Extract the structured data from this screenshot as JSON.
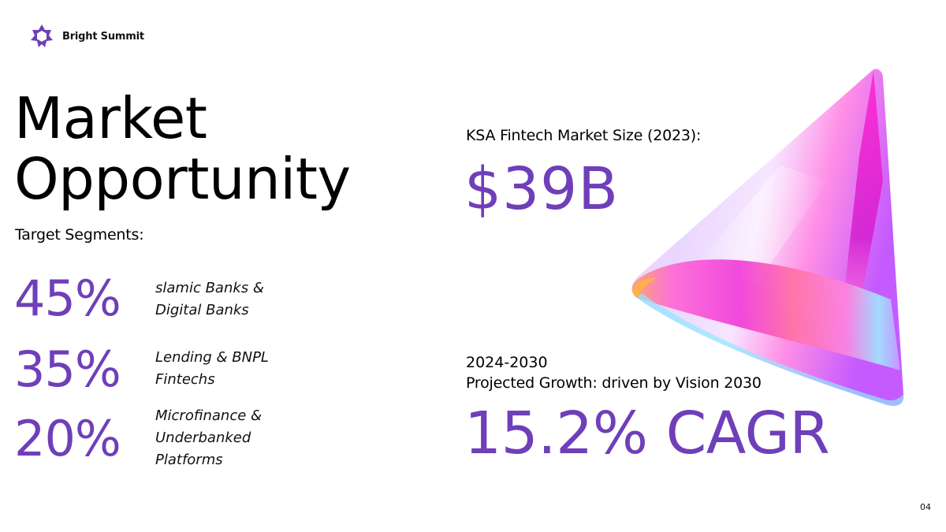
{
  "brand": {
    "name": "Bright Summit",
    "logo_icon": "star-badge-icon",
    "logo_color": "#6f3fb9"
  },
  "title": {
    "line1": "Market",
    "line2": "Opportunity"
  },
  "segments": {
    "heading": "Target Segments:",
    "items": [
      {
        "percent": "45%",
        "label_line1": "slamic Banks &",
        "label_line2": "Digital Banks",
        "label_line3": ""
      },
      {
        "percent": "35%",
        "label_line1": "Lending & BNPL",
        "label_line2": "Fintechs",
        "label_line3": ""
      },
      {
        "percent": "20%",
        "label_line1": "Microfinance &",
        "label_line2": "Underbanked",
        "label_line3": "Platforms"
      }
    ]
  },
  "market": {
    "label": "KSA Fintech Market Size (2023):",
    "value": "$39B"
  },
  "growth": {
    "period": "2024-2030",
    "label": "Projected Growth: driven by Vision 2030",
    "value": "15.2% CAGR"
  },
  "page_number": "04",
  "colors": {
    "accent": "#6f3fb9",
    "text": "#000000",
    "background": "#ffffff"
  },
  "decoration": {
    "image": "iridescent-cone-image"
  }
}
